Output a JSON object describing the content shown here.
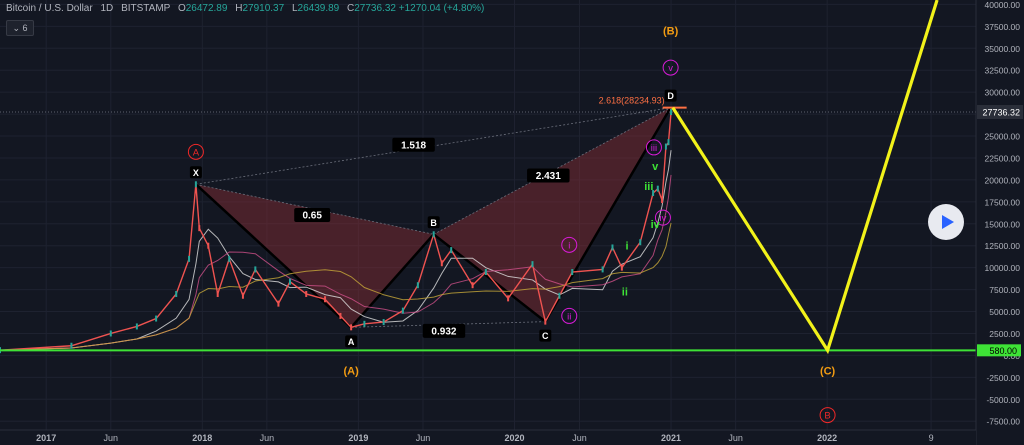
{
  "header": {
    "symbol": "Bitcoin / U.S. Dollar",
    "interval": "1D",
    "exchange": "BITSTAMP",
    "o_label": "O",
    "o_value": "26472.89",
    "h_label": "H",
    "h_value": "27910.37",
    "l_label": "L",
    "l_value": "26439.89",
    "c_label": "C",
    "c_value": "27736.32",
    "change": "+1270.04 (+4.80%)",
    "indicator_count": "6"
  },
  "colors": {
    "background": "#131722",
    "grid": "#1e2230",
    "text": "#b2b5be",
    "candle_up": "#26a69a",
    "candle_down": "#ef5350",
    "pattern_fill": "#8b2e35",
    "pattern_line": "#000000",
    "projection": "#f2f21a",
    "support": "#3ee236",
    "orange": "#f39c12",
    "magenta": "#d81bd8",
    "red": "#ef2828",
    "green": "#3ee236",
    "price_tag": "#2a2e39"
  },
  "chart_data": {
    "type": "line",
    "title": "",
    "xlabel": "",
    "ylabel": "",
    "x_ticks": [
      "2017",
      "Jun",
      "2018",
      "Jun",
      "2019",
      "Jun",
      "2020",
      "Jun",
      "2021",
      "Jun",
      "2022",
      "9"
    ],
    "y_ticks": [
      "40000.00",
      "37500.00",
      "35000.00",
      "32500.00",
      "30000.00",
      "27500.00",
      "25000.00",
      "22500.00",
      "20000.00",
      "17500.00",
      "15000.00",
      "12500.00",
      "10000.00",
      "7500.00",
      "5000.00",
      "2500.00",
      "0.00",
      "-2500.00",
      "-5000.00",
      "-7500.00"
    ],
    "ylim": [
      -8500,
      40500
    ],
    "x_range": [
      "2016-09-15",
      "2022-12-15"
    ],
    "last_price": "27736.32",
    "last_price_value": 27736.32,
    "support_level": "580.00",
    "support_value": 580,
    "series": [
      {
        "points": [
          [
            "2016-09-15",
            600
          ],
          [
            "2017-03-01",
            1100
          ],
          [
            "2017-06-01",
            2500
          ],
          [
            "2017-08-01",
            3300
          ],
          [
            "2017-09-15",
            4200
          ],
          [
            "2017-11-01",
            7000
          ],
          [
            "2017-12-01",
            11000
          ],
          [
            "2017-12-17",
            19500
          ],
          [
            "2017-12-25",
            14500
          ],
          [
            "2018-01-15",
            12500
          ],
          [
            "2018-02-06",
            7000
          ],
          [
            "2018-03-05",
            11000
          ],
          [
            "2018-04-06",
            6800
          ],
          [
            "2018-05-05",
            9800
          ],
          [
            "2018-06-28",
            5900
          ],
          [
            "2018-07-25",
            8400
          ],
          [
            "2018-09-01",
            7000
          ],
          [
            "2018-10-15",
            6400
          ],
          [
            "2018-11-20",
            4500
          ],
          [
            "2018-12-15",
            3200
          ],
          [
            "2019-01-15",
            3600
          ],
          [
            "2019-03-01",
            3800
          ],
          [
            "2019-04-15",
            5100
          ],
          [
            "2019-05-20",
            8000
          ],
          [
            "2019-06-26",
            13800
          ],
          [
            "2019-07-15",
            10500
          ],
          [
            "2019-08-06",
            12000
          ],
          [
            "2019-09-25",
            8000
          ],
          [
            "2019-10-26",
            9500
          ],
          [
            "2019-12-17",
            6500
          ],
          [
            "2020-02-12",
            10400
          ],
          [
            "2020-03-13",
            3850
          ],
          [
            "2020-04-15",
            6800
          ],
          [
            "2020-05-15",
            9500
          ],
          [
            "2020-07-25",
            9800
          ],
          [
            "2020-08-17",
            12300
          ],
          [
            "2020-09-08",
            10000
          ],
          [
            "2020-10-21",
            12900
          ],
          [
            "2020-11-20",
            18500
          ],
          [
            "2020-12-01",
            19000
          ],
          [
            "2020-12-11",
            17700
          ],
          [
            "2020-12-20",
            23800
          ],
          [
            "2020-12-26",
            24300
          ],
          [
            "2021-01-01",
            27736.32
          ]
        ]
      }
    ],
    "harmonic_pattern": {
      "points": [
        {
          "label": "X",
          "date": "2017-12-17",
          "price": 19500
        },
        {
          "label": "A",
          "date": "2018-12-15",
          "price": 3200
        },
        {
          "label": "B",
          "date": "2019-06-26",
          "price": 13800
        },
        {
          "label": "C",
          "date": "2020-03-13",
          "price": 3850
        },
        {
          "label": "D",
          "date": "2020-12-31",
          "price": 28234.93
        }
      ],
      "ratios": [
        {
          "text": "0.65",
          "date": "2018-09-15",
          "price": 16000
        },
        {
          "text": "0.932",
          "date": "2019-07-20",
          "price": 2800
        },
        {
          "text": "2.431",
          "date": "2020-03-20",
          "price": 20500
        },
        {
          "text": "1.518",
          "date": "2019-05-10",
          "price": 24000
        }
      ],
      "target_label": "2.618(28234.93)",
      "target_price": 28234.93
    },
    "projection": [
      {
        "date": "2021-01-05",
        "price": 28234.93
      },
      {
        "date": "2022-01-02",
        "price": 580
      },
      {
        "date": "2022-09-15",
        "price": 40500
      }
    ],
    "wave_labels": [
      {
        "text": "(A)",
        "date": "2018-12-15",
        "price": -1700,
        "color": "orange",
        "style": "plain"
      },
      {
        "text": "(B)",
        "date": "2020-12-31",
        "price": 37000,
        "color": "orange",
        "style": "plain"
      },
      {
        "text": "(C)",
        "date": "2022-01-02",
        "price": -1700,
        "color": "orange",
        "style": "plain"
      },
      {
        "text": "A",
        "date": "2017-12-17",
        "price": 23200,
        "color": "red",
        "style": "circle"
      },
      {
        "text": "B",
        "date": "2022-01-02",
        "price": -6800,
        "color": "red",
        "style": "circle"
      },
      {
        "text": "v",
        "date": "2020-12-31",
        "price": 32800,
        "color": "magenta",
        "style": "circle"
      },
      {
        "text": "iii",
        "date": "2020-11-22",
        "price": 23700,
        "color": "magenta",
        "style": "circle"
      },
      {
        "text": "iv",
        "date": "2020-12-13",
        "price": 15700,
        "color": "magenta",
        "style": "circle"
      },
      {
        "text": "i",
        "date": "2020-05-08",
        "price": 12600,
        "color": "magenta",
        "style": "circle"
      },
      {
        "text": "ii",
        "date": "2020-05-08",
        "price": 4500,
        "color": "magenta",
        "style": "circle"
      },
      {
        "text": "v",
        "date": "2020-11-25",
        "price": 21600,
        "color": "green",
        "style": "plain"
      },
      {
        "text": "iii",
        "date": "2020-11-10",
        "price": 19300,
        "color": "green",
        "style": "plain"
      },
      {
        "text": "iv",
        "date": "2020-11-25",
        "price": 15000,
        "color": "green",
        "style": "plain"
      },
      {
        "text": "i",
        "date": "2020-09-20",
        "price": 12500,
        "color": "green",
        "style": "plain"
      },
      {
        "text": "ii",
        "date": "2020-09-15",
        "price": 7300,
        "color": "green",
        "style": "plain"
      }
    ]
  },
  "controls": {
    "play_icon": "play-icon"
  }
}
